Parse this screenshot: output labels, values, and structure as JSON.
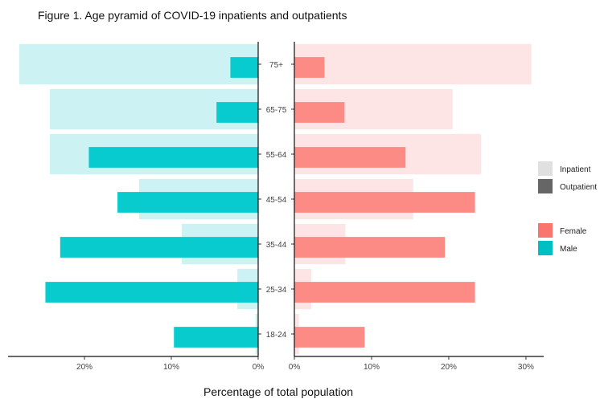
{
  "chart_data": {
    "type": "bar",
    "title": "Figure 1. Age pyramid of COVID-19 inpatients and outpatients",
    "xlabel": "Percentage of total population",
    "ylabel": "",
    "categories": [
      "18-24",
      "25-34",
      "35-44",
      "45-54",
      "55-64",
      "65-75",
      "75+"
    ],
    "left_axis": {
      "xlim": [
        28.8,
        0
      ],
      "ticks": [
        20,
        10,
        0
      ],
      "tick_labels": [
        "20%",
        "10%",
        "0%"
      ]
    },
    "right_axis": {
      "xlim": [
        0,
        32.3
      ],
      "ticks": [
        0,
        10,
        20,
        30
      ],
      "tick_labels": [
        "0%",
        "10%",
        "20%",
        "30%"
      ]
    },
    "series": [
      {
        "name": "Inpatient",
        "sex": "Male",
        "values": [
          0.3,
          2.4,
          8.8,
          13.7,
          24.0,
          24.0,
          27.5
        ]
      },
      {
        "name": "Outpatient",
        "sex": "Male",
        "values": [
          9.7,
          24.5,
          22.8,
          16.2,
          19.5,
          4.8,
          3.2
        ]
      },
      {
        "name": "Inpatient",
        "sex": "Female",
        "values": [
          0.6,
          2.2,
          6.6,
          15.4,
          24.2,
          20.5,
          30.7
        ]
      },
      {
        "name": "Outpatient",
        "sex": "Female",
        "values": [
          9.1,
          23.4,
          19.5,
          23.4,
          14.4,
          6.5,
          3.9
        ]
      }
    ],
    "legend": {
      "position": "right",
      "type_entries": [
        {
          "label": "Inpatient",
          "color": "#e0e0e0"
        },
        {
          "label": "Outpatient",
          "color": "#666666"
        }
      ],
      "sex_entries": [
        {
          "label": "Female",
          "color": "#f8766d"
        },
        {
          "label": "Male",
          "color": "#00bfc4"
        }
      ]
    },
    "colors": {
      "male_inpatient": "#cdf2f3",
      "male_outpatient": "#00c9cc",
      "female_inpatient": "#fee5e5",
      "female_outpatient": "#fb8780"
    },
    "grid": false
  }
}
